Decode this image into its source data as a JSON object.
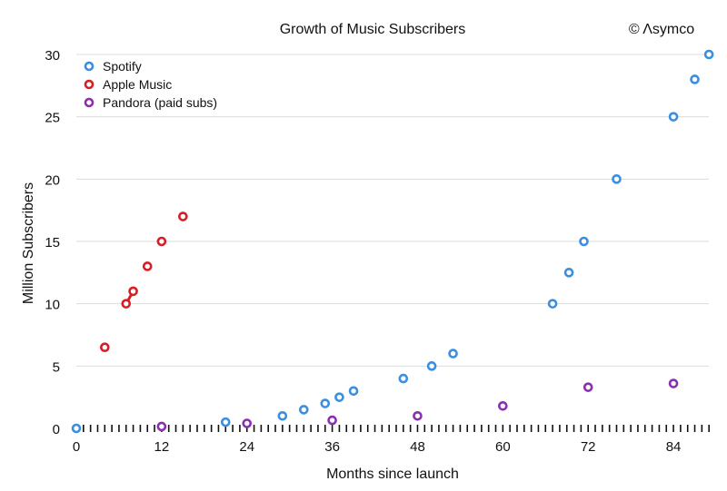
{
  "chart_data": {
    "type": "scatter",
    "title": "Growth of Music Subscribers",
    "watermark": "© Λsymco",
    "xlabel": "Months since launch",
    "ylabel": "Million Subscribers",
    "xlim": [
      0,
      90
    ],
    "ylim": [
      0,
      30
    ],
    "xticks": [
      0,
      12,
      24,
      36,
      48,
      60,
      72,
      84
    ],
    "yticks": [
      0,
      5,
      10,
      15,
      20,
      25,
      30
    ],
    "grid": true,
    "legend_position": "top-left",
    "series": [
      {
        "name": "Spotify",
        "color": "#3b8fe0",
        "x": [
          0,
          21,
          29,
          32,
          35,
          37,
          39,
          46,
          50,
          53,
          67,
          69.3,
          71.4,
          76,
          84,
          87,
          89
        ],
        "y": [
          0,
          0.5,
          1,
          1.5,
          2,
          2.5,
          3,
          4,
          5,
          6,
          10,
          12.5,
          15,
          20,
          25,
          28,
          30
        ]
      },
      {
        "name": "Apple Music",
        "color": "#d81e25",
        "x": [
          4,
          7,
          8,
          10,
          12,
          15
        ],
        "y": [
          6.5,
          10,
          11,
          13,
          15,
          17
        ]
      },
      {
        "name": "Pandora (paid subs)",
        "color": "#8a2fb0",
        "x": [
          12,
          24,
          36,
          48,
          60,
          72,
          84
        ],
        "y": [
          0.15,
          0.4,
          0.65,
          1,
          1.8,
          3.3,
          3.6
        ]
      }
    ]
  }
}
